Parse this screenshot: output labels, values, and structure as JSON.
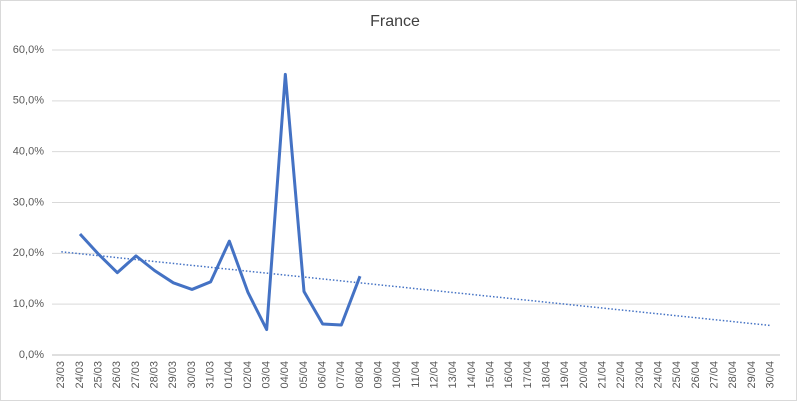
{
  "chart_data": {
    "type": "line",
    "title": "France",
    "categories": [
      "23/03",
      "24/03",
      "25/03",
      "26/03",
      "27/03",
      "28/03",
      "29/03",
      "30/03",
      "31/03",
      "01/04",
      "02/04",
      "03/04",
      "04/04",
      "05/04",
      "06/04",
      "07/04",
      "08/04",
      "09/04",
      "10/04",
      "11/04",
      "12/04",
      "13/04",
      "14/04",
      "15/04",
      "16/04",
      "17/04",
      "18/04",
      "19/04",
      "20/04",
      "21/04",
      "22/04",
      "23/04",
      "24/04",
      "25/04",
      "26/04",
      "27/04",
      "28/04",
      "29/04",
      "30/04"
    ],
    "series": [
      {
        "color": "#4472c4",
        "values": [
          null,
          23.8,
          19.8,
          16.2,
          19.5,
          16.6,
          14.2,
          12.9,
          14.4,
          22.4,
          12.3,
          5.0,
          55.2,
          12.5,
          6.1,
          5.9,
          15.5,
          null,
          null,
          null,
          null,
          null,
          null,
          null,
          null,
          null,
          null,
          null,
          null,
          null,
          null,
          null,
          null,
          null,
          null,
          null,
          null,
          null,
          null
        ]
      }
    ],
    "trendline": {
      "color": "#4472c4",
      "style": "dotted",
      "start": 20.3,
      "end": 5.8
    },
    "ylim": [
      0,
      60
    ],
    "yticks": [
      {
        "value": 0,
        "label": "0,0%"
      },
      {
        "value": 10,
        "label": "10,0%"
      },
      {
        "value": 20,
        "label": "20,0%"
      },
      {
        "value": 30,
        "label": "30,0%"
      },
      {
        "value": 40,
        "label": "40,0%"
      },
      {
        "value": 50,
        "label": "50,0%"
      },
      {
        "value": 60,
        "label": "60,0%"
      }
    ],
    "grid": true
  }
}
